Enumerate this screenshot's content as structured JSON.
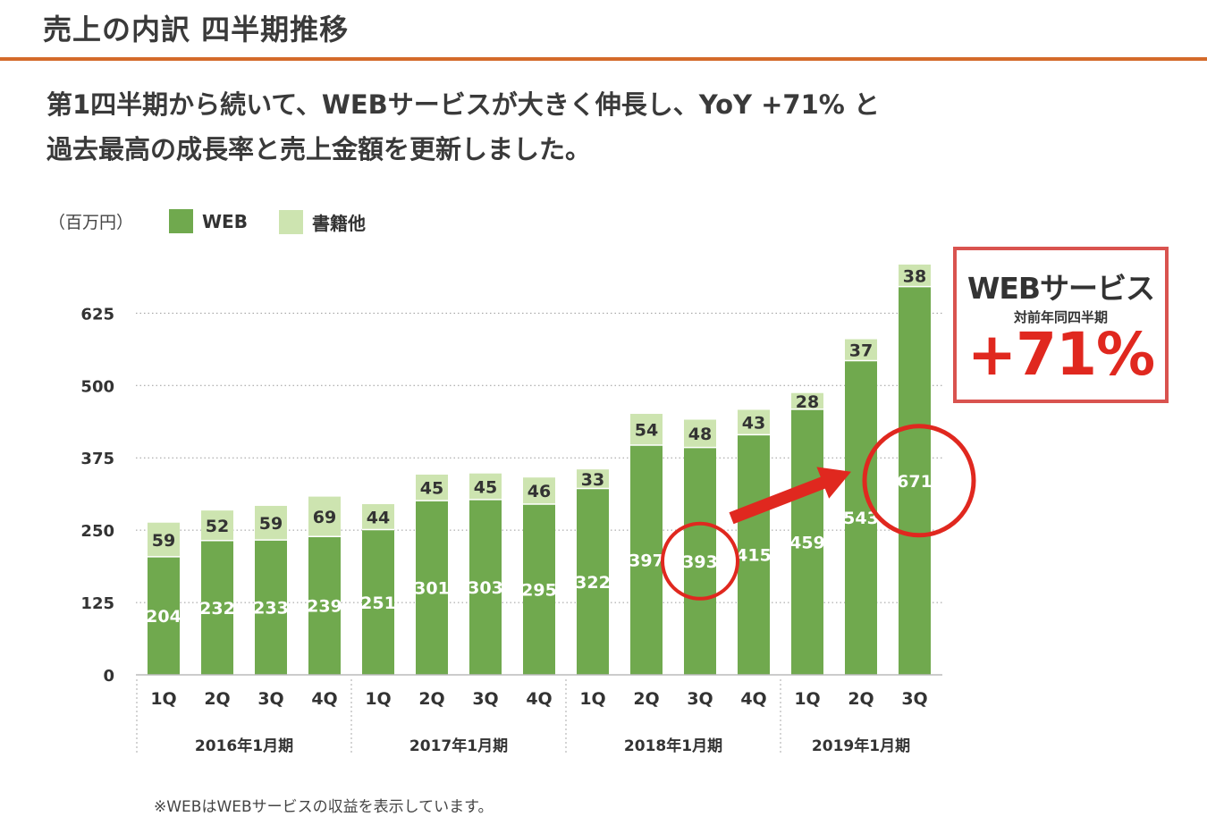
{
  "header": {
    "title": "売上の内訳 四半期推移",
    "headline_line1": "第1四半期から続いて、WEBサービスが大きく伸長し、YoY +71% と",
    "headline_line2": "過去最高の成長率と売上金額を更新しました。"
  },
  "legend": {
    "unit": "（百万円）",
    "web": "WEB",
    "books": "書籍他"
  },
  "callout": {
    "title": "WEBサービス",
    "subtitle": "対前年同四半期",
    "value": "+71%"
  },
  "footnote": "※WEBはWEBサービスの収益を表示しています。",
  "colors": {
    "web": "#70a94e",
    "books": "#cde4b0",
    "accent": "#d46a2a",
    "highlight": "#e0281f"
  },
  "chart_data": {
    "type": "bar",
    "stacked": true,
    "categories": [
      "1Q",
      "2Q",
      "3Q",
      "4Q",
      "1Q",
      "2Q",
      "3Q",
      "4Q",
      "1Q",
      "2Q",
      "3Q",
      "4Q",
      "1Q",
      "2Q",
      "3Q"
    ],
    "groups": [
      {
        "label": "2016年1月期",
        "count": 4
      },
      {
        "label": "2017年1月期",
        "count": 4
      },
      {
        "label": "2018年1月期",
        "count": 4
      },
      {
        "label": "2019年1月期",
        "count": 3
      }
    ],
    "series": [
      {
        "name": "WEB",
        "values": [
          204,
          232,
          233,
          239,
          251,
          301,
          303,
          295,
          322,
          397,
          393,
          415,
          459,
          543,
          671
        ]
      },
      {
        "name": "書籍他",
        "values": [
          59,
          52,
          59,
          69,
          44,
          45,
          45,
          46,
          33,
          54,
          48,
          43,
          28,
          37,
          38
        ]
      }
    ],
    "yticks": [
      0,
      125,
      250,
      375,
      500,
      625
    ],
    "ylim": [
      0,
      709
    ],
    "grid": true,
    "legend_position": "top-left",
    "highlighted": [
      10,
      14
    ]
  }
}
